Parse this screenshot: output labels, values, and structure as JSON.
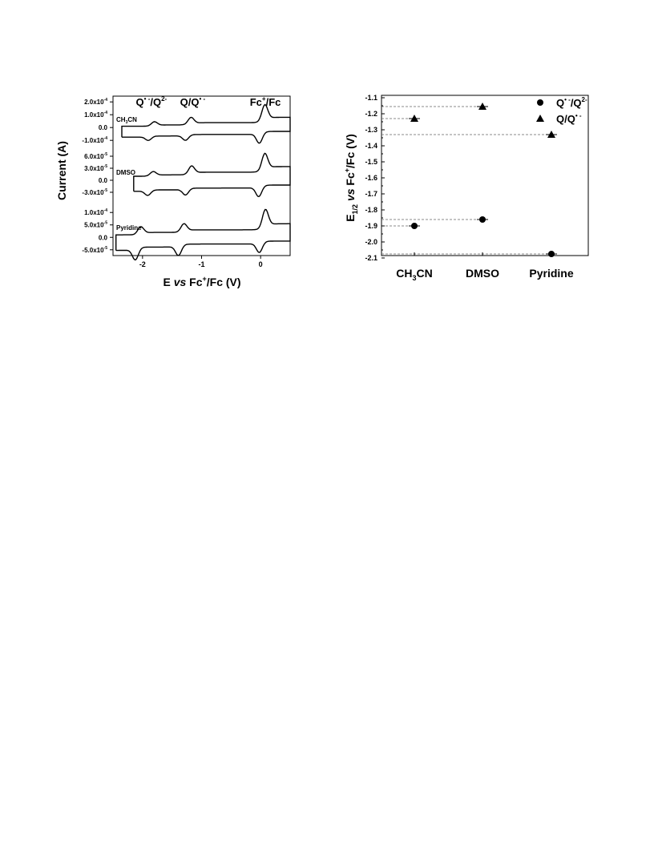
{
  "chart_data": [
    {
      "type": "line",
      "xlabel": {
        "pre": "E ",
        "it": "vs",
        "post": " Fc",
        "sup": "+",
        "post2": "/Fc (V)"
      },
      "ylabel": "Current (A)",
      "xlim": [
        -2.5,
        0.5
      ],
      "xticks": [
        "-2",
        "-1",
        "0"
      ],
      "xtick_values": [
        -2,
        -1,
        0
      ],
      "peak_labels": [
        {
          "key": "q1",
          "text": "Q",
          "sup": "• -",
          "mid": "/Q",
          "sup2": "2-",
          "x": -1.85
        },
        {
          "key": "q2",
          "text": "Q/Q",
          "sup": "• -",
          "mid": "",
          "sup2": "",
          "x": -1.15
        },
        {
          "key": "fc",
          "text": "Fc",
          "sup": "+",
          "mid": "/Fc",
          "sup2": "",
          "x": 0.08
        }
      ],
      "panels": [
        {
          "solvent": "CH3CN",
          "solvent_parts": {
            "a": "CH",
            "sub": "3",
            "b": "CN"
          },
          "ylim": [
            -0.00013,
            0.00022
          ],
          "ytick_values": [
            0.0002,
            0.0001,
            0,
            -0.0001
          ],
          "yticks": [
            {
              "m": "2.0x10",
              "e": "-4"
            },
            {
              "m": "1.0x10",
              "e": "-4"
            },
            {
              "m": "0.0",
              "e": ""
            },
            {
              "m": "-1.0x10",
              "e": "-4"
            }
          ],
          "cv": {
            "xmin": -2.35,
            "xmax": 0.5,
            "base_top": 1e-05,
            "base_bot": -3e-05,
            "waves": [
              [
                -1.8,
                3e-05,
                -1.9,
                -3e-05
              ],
              [
                -1.18,
                5e-05,
                -1.27,
                -4e-05
              ],
              [
                0.07,
                0.00012,
                -0.02,
                -8e-05
              ]
            ]
          }
        },
        {
          "solvent": "DMSO",
          "solvent_parts": {
            "a": "DMSO",
            "sub": "",
            "b": ""
          },
          "ylim": [
            -5e-05,
            7e-05
          ],
          "ytick_values": [
            6e-05,
            3e-05,
            0,
            -3e-05
          ],
          "yticks": [
            {
              "m": "6.0x10",
              "e": "-5"
            },
            {
              "m": "3.0x10",
              "e": "-5"
            },
            {
              "m": "0.0",
              "e": ""
            },
            {
              "m": "-3.0x10",
              "e": "-5"
            }
          ],
          "cv": {
            "xmin": -2.15,
            "xmax": 0.5,
            "base_top": 1e-05,
            "base_bot": -1.2e-05,
            "waves": [
              [
                -1.82,
                1e-05,
                -1.91,
                -1.2e-05
              ],
              [
                -1.17,
                1.9e-05,
                -1.27,
                -1.5e-05
              ],
              [
                0.07,
                4e-05,
                -0.03,
                -2.5e-05
              ]
            ]
          }
        },
        {
          "solvent": "Pyridine",
          "solvent_parts": {
            "a": "Pyridine",
            "sub": "",
            "b": ""
          },
          "ylim": [
            -7e-05,
            0.00012
          ],
          "ytick_values": [
            0.0001,
            5e-05,
            0,
            -5e-05
          ],
          "yticks": [
            {
              "m": "1.0x10",
              "e": "-4"
            },
            {
              "m": "5.0x10",
              "e": "-5"
            },
            {
              "m": "0.0",
              "e": ""
            },
            {
              "m": "-5.0x10",
              "e": "-5"
            }
          ],
          "cv": {
            "xmin": -2.45,
            "xmax": 0.5,
            "base_top": 1e-05,
            "base_bot": -1.5e-05,
            "waves": [
              [
                -2.03,
                2.8e-05,
                -2.12,
                -4.5e-05
              ],
              [
                -1.3,
                3e-05,
                -1.39,
                -4e-05
              ],
              [
                0.08,
                7e-05,
                -0.02,
                -4e-05
              ]
            ]
          }
        }
      ]
    },
    {
      "type": "scatter",
      "ylabel": {
        "a": "E",
        "sub": "1/2",
        "b": " ",
        "it": "vs",
        "c": " Fc",
        "sup": "+",
        "d": "/Fc (V)"
      },
      "categories": [
        "CH3CN",
        "DMSO",
        "Pyridine"
      ],
      "category_parts": [
        {
          "a": "CH",
          "sub": "3",
          "b": "CN"
        },
        {
          "a": "DMSO",
          "sub": "",
          "b": ""
        },
        {
          "a": "Pyridine",
          "sub": "",
          "b": ""
        }
      ],
      "ylim": [
        -2.1,
        -1.1
      ],
      "ytick_values": [
        -1.1,
        -1.2,
        -1.3,
        -1.4,
        -1.5,
        -1.6,
        -1.7,
        -1.8,
        -1.9,
        -2.0,
        -2.1
      ],
      "yticks": [
        "-1.1",
        "-1.2",
        "-1.3",
        "-1.4",
        "-1.5",
        "-1.6",
        "-1.7",
        "-1.8",
        "-1.9",
        "-2.0",
        "-2.1"
      ],
      "legend_position": "top-right",
      "series": [
        {
          "key": "q1",
          "name": "Q•-/Q2-",
          "label": {
            "a": "Q",
            "sup": "• -",
            "b": "/Q",
            "sup2": "2-"
          },
          "marker": "circle",
          "values": [
            -1.9,
            -1.86,
            -2.075
          ]
        },
        {
          "key": "q2",
          "name": "Q/Q•-",
          "label": {
            "a": "Q/Q",
            "sup": "• -",
            "b": "",
            "sup2": ""
          },
          "marker": "triangle",
          "values": [
            -1.23,
            -1.155,
            -1.33
          ]
        }
      ]
    }
  ]
}
